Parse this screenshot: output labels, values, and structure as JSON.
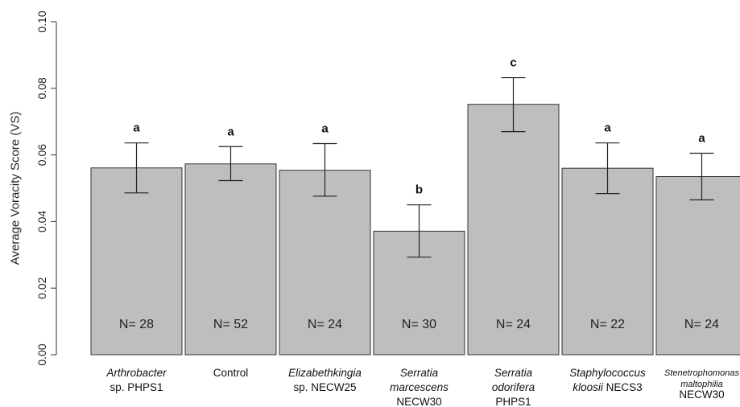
{
  "chart_data": {
    "type": "bar",
    "ylabel": "Average Voracity Score (VS)",
    "ylim": [
      0,
      0.1
    ],
    "yticks": [
      "0.00",
      "0.02",
      "0.04",
      "0.06",
      "0.08",
      "0.10"
    ],
    "grid": false,
    "bar_color": "#bebebe",
    "categories": [
      {
        "lines": [
          {
            "parts": [
              {
                "text": "Arthrobacter",
                "italic": true
              }
            ]
          },
          {
            "parts": [
              {
                "text": "sp. PHPS1",
                "italic": false
              }
            ]
          }
        ]
      },
      {
        "lines": [
          {
            "parts": [
              {
                "text": "Control",
                "italic": false
              }
            ]
          }
        ]
      },
      {
        "lines": [
          {
            "parts": [
              {
                "text": "Elizabethkingia",
                "italic": true
              }
            ]
          },
          {
            "parts": [
              {
                "text": "sp. NECW25",
                "italic": false
              }
            ]
          }
        ]
      },
      {
        "lines": [
          {
            "parts": [
              {
                "text": "Serratia",
                "italic": true
              }
            ]
          },
          {
            "parts": [
              {
                "text": "marcescens",
                "italic": true
              }
            ]
          },
          {
            "parts": [
              {
                "text": "NECW30",
                "italic": false
              }
            ]
          }
        ]
      },
      {
        "lines": [
          {
            "parts": [
              {
                "text": "Serratia",
                "italic": true
              }
            ]
          },
          {
            "parts": [
              {
                "text": "odorifera",
                "italic": true
              }
            ]
          },
          {
            "parts": [
              {
                "text": "PHPS1",
                "italic": false
              }
            ]
          }
        ]
      },
      {
        "lines": [
          {
            "parts": [
              {
                "text": "Staphylococcus",
                "italic": true
              }
            ]
          },
          {
            "parts": [
              {
                "text": "kloosii",
                "italic": true
              },
              {
                "text": " NECS3",
                "italic": false
              }
            ]
          }
        ]
      },
      {
        "small": true,
        "lines": [
          {
            "parts": [
              {
                "text": "Stenetrophomonas",
                "italic": true
              }
            ]
          },
          {
            "parts": [
              {
                "text": "maltophilia",
                "italic": true
              }
            ]
          },
          {
            "parts": [
              {
                "text": "NECW30",
                "italic": false
              }
            ]
          }
        ]
      }
    ],
    "values": [
      0.0561,
      0.0573,
      0.0554,
      0.0371,
      0.0752,
      0.056,
      0.0535
    ],
    "error_low": [
      0.0486,
      0.0523,
      0.0476,
      0.0293,
      0.067,
      0.0484,
      0.0465
    ],
    "error_high": [
      0.0636,
      0.0625,
      0.0634,
      0.045,
      0.0832,
      0.0636,
      0.0605
    ],
    "significance": [
      "a",
      "a",
      "a",
      "b",
      "c",
      "a",
      "a"
    ],
    "n_labels": [
      "N= 28",
      "N= 52",
      "N= 24",
      "N= 30",
      "N= 24",
      "N= 22",
      "N= 24"
    ]
  }
}
